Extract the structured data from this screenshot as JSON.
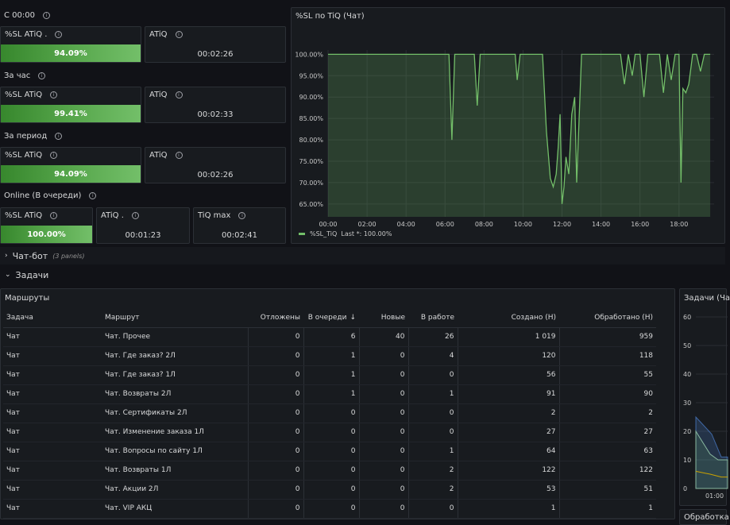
{
  "left_groups": [
    {
      "label": "С 00:00",
      "sl_title": "%SL ATiQ .",
      "sl_value": "94.09%",
      "atiq_title": "ATiQ",
      "atiq_value": "00:02:26"
    },
    {
      "label": "За час",
      "sl_title": "%SL ATiQ",
      "sl_value": "99.41%",
      "atiq_title": "ATiQ",
      "atiq_value": "00:02:33"
    },
    {
      "label": "За период",
      "sl_title": "%SL ATiQ",
      "sl_value": "94.09%",
      "atiq_title": "ATiQ",
      "atiq_value": "00:02:26"
    }
  ],
  "online": {
    "label": "Online (В очереди)",
    "sl_title": "%SL ATiQ",
    "sl_value": "100.00%",
    "atiq_title": "ATiQ .",
    "atiq_value": "00:01:23",
    "tiq_title": "TiQ max",
    "tiq_value": "00:02:41"
  },
  "chart_panel": {
    "title": "%SL по TiQ (Чат)",
    "legend_series": "%SL_TiQ",
    "legend_last": "Last *: 100.00%"
  },
  "chart_data": {
    "type": "area",
    "title": "%SL по TiQ (Чат)",
    "y_ticks": [
      "100.00%",
      "95.00%",
      "90.00%",
      "85.00%",
      "80.00%",
      "75.00%",
      "70.00%",
      "65.00%"
    ],
    "x_ticks": [
      "00:00",
      "02:00",
      "04:00",
      "06:00",
      "08:00",
      "10:00",
      "12:00",
      "14:00",
      "16:00",
      "18:00"
    ],
    "ylim": [
      62,
      101
    ],
    "xlim": [
      0,
      19.8
    ],
    "series": [
      {
        "name": "%SL_TiQ",
        "x": [
          0,
          6.2,
          6.35,
          6.5,
          7.5,
          7.65,
          7.8,
          9.6,
          9.7,
          9.85,
          10.0,
          11.0,
          11.2,
          11.4,
          11.55,
          11.7,
          11.8,
          11.9,
          12.0,
          12.1,
          12.2,
          12.35,
          12.5,
          12.65,
          12.75,
          13.0,
          14.5,
          15.0,
          15.2,
          15.4,
          15.6,
          15.75,
          16.0,
          16.2,
          16.4,
          16.55,
          17.0,
          17.2,
          17.4,
          17.6,
          17.8,
          17.9,
          18.0,
          18.1,
          18.2,
          18.35,
          18.5,
          18.7,
          18.9,
          19.1,
          19.3,
          19.4,
          19.6
        ],
        "y": [
          100,
          100,
          80,
          100,
          100,
          88,
          100,
          100,
          94,
          100,
          100,
          100,
          82,
          71,
          69,
          72,
          78,
          86,
          65,
          69,
          76,
          72,
          86,
          90,
          70,
          100,
          100,
          100,
          93,
          100,
          95,
          100,
          100,
          90,
          100,
          100,
          100,
          91,
          100,
          94,
          100,
          100,
          100,
          70,
          92,
          91,
          93,
          100,
          100,
          96,
          100,
          100,
          100
        ]
      }
    ]
  },
  "sections": {
    "chatbot": {
      "title": "Чат-бот",
      "sub": "(3 panels)"
    },
    "tasks": {
      "title": "Задачи"
    }
  },
  "routes_panel": {
    "title": "Маршруты",
    "columns": [
      "Задача",
      "Маршрут",
      "Отложены",
      "В очереди",
      "Новые",
      "В работе",
      "Создано (Н)",
      "Обработано (Н)"
    ],
    "sort_indicator": "↓",
    "rows": [
      [
        "Чат",
        "Чат. Прочее",
        "0",
        "6",
        "40",
        "26",
        "1 019",
        "959"
      ],
      [
        "Чат",
        "Чат. Где заказ? 2Л",
        "0",
        "1",
        "0",
        "4",
        "120",
        "118"
      ],
      [
        "Чат",
        "Чат. Где заказ? 1Л",
        "0",
        "1",
        "0",
        "0",
        "56",
        "55"
      ],
      [
        "Чат",
        "Чат. Возвраты 2Л",
        "0",
        "1",
        "0",
        "1",
        "91",
        "90"
      ],
      [
        "Чат",
        "Чат. Сертификаты 2Л",
        "0",
        "0",
        "0",
        "0",
        "2",
        "2"
      ],
      [
        "Чат",
        "Чат. Изменение заказа 1Л",
        "0",
        "0",
        "0",
        "0",
        "27",
        "27"
      ],
      [
        "Чат",
        "Чат. Вопросы по сайту 1Л",
        "0",
        "0",
        "0",
        "1",
        "64",
        "63"
      ],
      [
        "Чат",
        "Чат. Возвраты 1Л",
        "0",
        "0",
        "0",
        "2",
        "122",
        "122"
      ],
      [
        "Чат",
        "Чат. Акции 2Л",
        "0",
        "0",
        "0",
        "2",
        "53",
        "51"
      ],
      [
        "Чат",
        "Чат. VIP АКЦ",
        "0",
        "0",
        "0",
        "0",
        "1",
        "1"
      ]
    ]
  },
  "tasks_panel": {
    "title": "Задачи (Ча",
    "y_ticks": [
      "60",
      "50",
      "40",
      "30",
      "20",
      "10",
      "0"
    ],
    "x_tick": "01:00"
  },
  "bottom_panel": {
    "title": "Обработка"
  }
}
